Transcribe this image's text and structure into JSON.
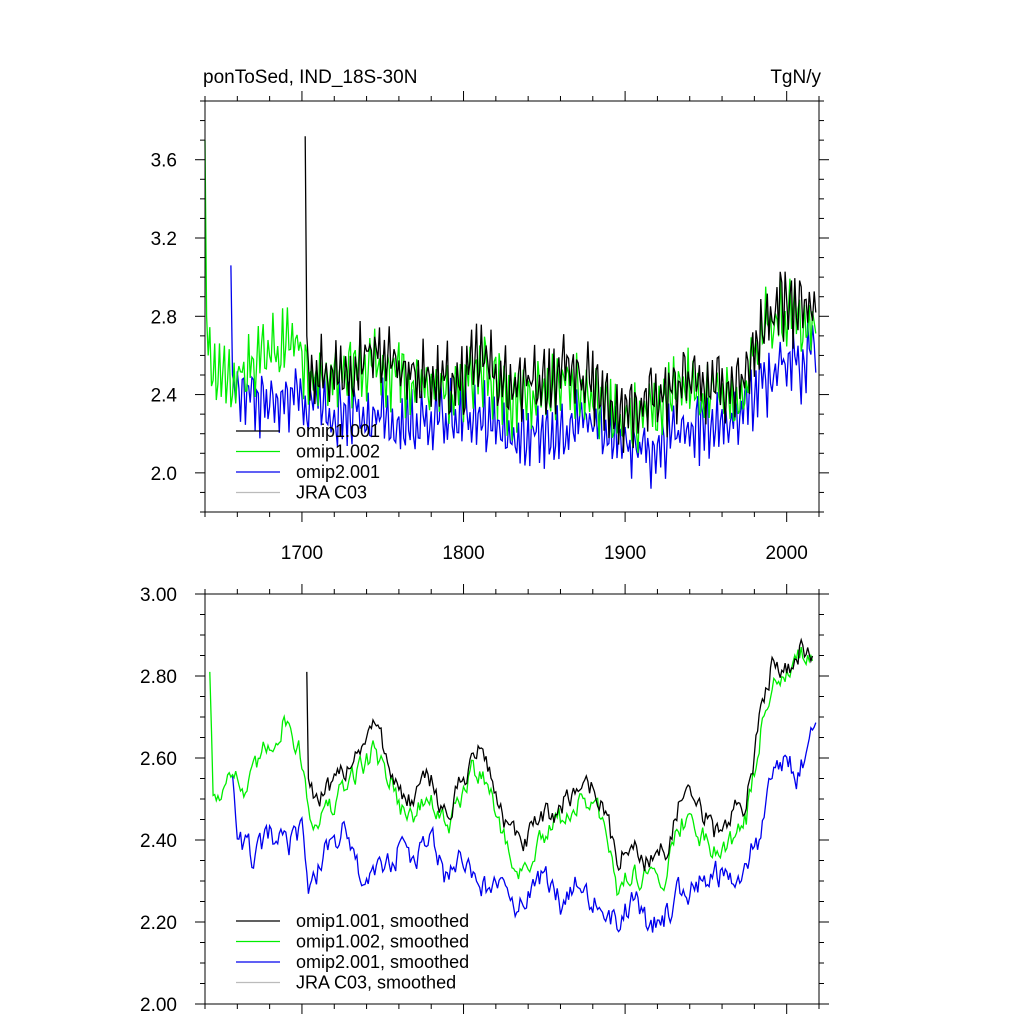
{
  "chart_data": [
    {
      "type": "line",
      "title_left": "ponToSed, IND_18S-30N",
      "title_right": "TgN/y",
      "xlim": [
        1640,
        2020
      ],
      "ylim": [
        1.8,
        3.9
      ],
      "x_ticks": [
        1700,
        1800,
        1900,
        2000
      ],
      "x_tick_labels": [
        "1700",
        "1800",
        "1900",
        "2000"
      ],
      "y_ticks": [
        2.0,
        2.4,
        2.8,
        3.2,
        3.6
      ],
      "y_tick_labels": [
        "2.0",
        "2.4",
        "2.8",
        "3.2",
        "3.6"
      ],
      "legend_position": "bottom-left",
      "series": [
        {
          "name": "omip1.001",
          "color": "#000000",
          "x_start": 1702,
          "x_end": 2018,
          "anchors": [
            [
              1702,
              3.72
            ],
            [
              1703,
              2.7
            ],
            [
              1705,
              2.55
            ],
            [
              1720,
              2.5
            ],
            [
              1740,
              2.62
            ],
            [
              1760,
              2.55
            ],
            [
              1780,
              2.48
            ],
            [
              1800,
              2.45
            ],
            [
              1810,
              2.6
            ],
            [
              1830,
              2.42
            ],
            [
              1850,
              2.48
            ],
            [
              1870,
              2.52
            ],
            [
              1880,
              2.45
            ],
            [
              1895,
              2.28
            ],
            [
              1910,
              2.35
            ],
            [
              1925,
              2.38
            ],
            [
              1935,
              2.5
            ],
            [
              1950,
              2.42
            ],
            [
              1965,
              2.45
            ],
            [
              1975,
              2.5
            ],
            [
              1985,
              2.75
            ],
            [
              1995,
              2.85
            ],
            [
              2005,
              2.85
            ],
            [
              2018,
              2.8
            ]
          ],
          "amplitude": 0.17
        },
        {
          "name": "omip1.002",
          "color": "#00ee00",
          "x_start": 1640,
          "x_end": 2018,
          "anchors": [
            [
              1640,
              3.7
            ],
            [
              1641,
              2.8
            ],
            [
              1643,
              2.55
            ],
            [
              1650,
              2.45
            ],
            [
              1660,
              2.5
            ],
            [
              1680,
              2.6
            ],
            [
              1695,
              2.7
            ],
            [
              1702,
              2.55
            ],
            [
              1720,
              2.45
            ],
            [
              1740,
              2.58
            ],
            [
              1760,
              2.5
            ],
            [
              1780,
              2.42
            ],
            [
              1800,
              2.42
            ],
            [
              1810,
              2.55
            ],
            [
              1830,
              2.38
            ],
            [
              1850,
              2.42
            ],
            [
              1870,
              2.48
            ],
            [
              1880,
              2.42
            ],
            [
              1895,
              2.25
            ],
            [
              1910,
              2.3
            ],
            [
              1925,
              2.35
            ],
            [
              1935,
              2.45
            ],
            [
              1950,
              2.38
            ],
            [
              1965,
              2.4
            ],
            [
              1975,
              2.45
            ],
            [
              1985,
              2.72
            ],
            [
              1995,
              2.8
            ],
            [
              2005,
              2.8
            ],
            [
              2018,
              2.75
            ]
          ],
          "amplitude": 0.17
        },
        {
          "name": "omip2.001",
          "color": "#0000ee",
          "x_start": 1656,
          "x_end": 2018,
          "anchors": [
            [
              1656,
              3.06
            ],
            [
              1657,
              2.5
            ],
            [
              1660,
              2.4
            ],
            [
              1680,
              2.35
            ],
            [
              1700,
              2.38
            ],
            [
              1720,
              2.3
            ],
            [
              1740,
              2.32
            ],
            [
              1760,
              2.25
            ],
            [
              1780,
              2.25
            ],
            [
              1800,
              2.3
            ],
            [
              1820,
              2.25
            ],
            [
              1840,
              2.18
            ],
            [
              1860,
              2.22
            ],
            [
              1880,
              2.25
            ],
            [
              1900,
              2.18
            ],
            [
              1915,
              2.1
            ],
            [
              1930,
              2.2
            ],
            [
              1950,
              2.25
            ],
            [
              1970,
              2.3
            ],
            [
              1985,
              2.45
            ],
            [
              2000,
              2.6
            ],
            [
              2010,
              2.55
            ],
            [
              2018,
              2.7
            ]
          ],
          "amplitude": 0.16
        },
        {
          "name": "JRA C03",
          "color": "#bbbbbb",
          "x_start": null,
          "x_end": null,
          "anchors": [],
          "amplitude": 0
        }
      ]
    },
    {
      "type": "line",
      "xlim": [
        1640,
        2020
      ],
      "ylim": [
        2.0,
        3.0
      ],
      "y_ticks": [
        2.0,
        2.2,
        2.4,
        2.6,
        2.8,
        3.0
      ],
      "y_tick_labels": [
        "2.00",
        "2.20",
        "2.40",
        "2.60",
        "2.80",
        "3.00"
      ],
      "legend_position": "bottom-left",
      "series": [
        {
          "name": "omip1.001, smoothed",
          "color": "#000000",
          "x_start": 1703,
          "x_end": 2016,
          "anchors": [
            [
              1703,
              2.81
            ],
            [
              1704,
              2.55
            ],
            [
              1710,
              2.5
            ],
            [
              1720,
              2.52
            ],
            [
              1730,
              2.6
            ],
            [
              1745,
              2.68
            ],
            [
              1755,
              2.58
            ],
            [
              1765,
              2.48
            ],
            [
              1780,
              2.55
            ],
            [
              1790,
              2.45
            ],
            [
              1805,
              2.6
            ],
            [
              1812,
              2.62
            ],
            [
              1825,
              2.45
            ],
            [
              1835,
              2.38
            ],
            [
              1850,
              2.45
            ],
            [
              1860,
              2.48
            ],
            [
              1875,
              2.55
            ],
            [
              1885,
              2.5
            ],
            [
              1895,
              2.35
            ],
            [
              1905,
              2.38
            ],
            [
              1915,
              2.35
            ],
            [
              1925,
              2.38
            ],
            [
              1935,
              2.5
            ],
            [
              1945,
              2.48
            ],
            [
              1955,
              2.42
            ],
            [
              1965,
              2.45
            ],
            [
              1975,
              2.5
            ],
            [
              1985,
              2.72
            ],
            [
              1992,
              2.85
            ],
            [
              2000,
              2.82
            ],
            [
              2010,
              2.88
            ],
            [
              2016,
              2.85
            ]
          ],
          "amplitude": 0.03
        },
        {
          "name": "omip1.002, smoothed",
          "color": "#00ee00",
          "x_start": 1643,
          "x_end": 2016,
          "anchors": [
            [
              1643,
              2.81
            ],
            [
              1645,
              2.52
            ],
            [
              1650,
              2.5
            ],
            [
              1655,
              2.6
            ],
            [
              1665,
              2.5
            ],
            [
              1675,
              2.6
            ],
            [
              1690,
              2.7
            ],
            [
              1700,
              2.6
            ],
            [
              1705,
              2.45
            ],
            [
              1720,
              2.48
            ],
            [
              1730,
              2.55
            ],
            [
              1745,
              2.62
            ],
            [
              1755,
              2.55
            ],
            [
              1765,
              2.45
            ],
            [
              1780,
              2.5
            ],
            [
              1790,
              2.42
            ],
            [
              1805,
              2.56
            ],
            [
              1812,
              2.58
            ],
            [
              1825,
              2.4
            ],
            [
              1835,
              2.32
            ],
            [
              1850,
              2.4
            ],
            [
              1860,
              2.45
            ],
            [
              1875,
              2.5
            ],
            [
              1885,
              2.45
            ],
            [
              1895,
              2.28
            ],
            [
              1905,
              2.33
            ],
            [
              1915,
              2.3
            ],
            [
              1925,
              2.33
            ],
            [
              1935,
              2.45
            ],
            [
              1945,
              2.43
            ],
            [
              1955,
              2.38
            ],
            [
              1965,
              2.4
            ],
            [
              1975,
              2.45
            ],
            [
              1985,
              2.68
            ],
            [
              1992,
              2.82
            ],
            [
              2000,
              2.8
            ],
            [
              2010,
              2.85
            ],
            [
              2016,
              2.82
            ]
          ],
          "amplitude": 0.03
        },
        {
          "name": "omip2.001, smoothed",
          "color": "#0000ee",
          "x_start": 1657,
          "x_end": 2018,
          "anchors": [
            [
              1657,
              2.56
            ],
            [
              1660,
              2.42
            ],
            [
              1670,
              2.35
            ],
            [
              1680,
              2.4
            ],
            [
              1690,
              2.38
            ],
            [
              1700,
              2.42
            ],
            [
              1705,
              2.28
            ],
            [
              1715,
              2.38
            ],
            [
              1725,
              2.42
            ],
            [
              1735,
              2.32
            ],
            [
              1745,
              2.3
            ],
            [
              1760,
              2.38
            ],
            [
              1770,
              2.35
            ],
            [
              1780,
              2.4
            ],
            [
              1790,
              2.3
            ],
            [
              1800,
              2.35
            ],
            [
              1810,
              2.28
            ],
            [
              1820,
              2.3
            ],
            [
              1830,
              2.22
            ],
            [
              1840,
              2.28
            ],
            [
              1850,
              2.3
            ],
            [
              1860,
              2.25
            ],
            [
              1870,
              2.32
            ],
            [
              1880,
              2.25
            ],
            [
              1895,
              2.2
            ],
            [
              1905,
              2.25
            ],
            [
              1915,
              2.18
            ],
            [
              1925,
              2.22
            ],
            [
              1935,
              2.28
            ],
            [
              1945,
              2.3
            ],
            [
              1955,
              2.32
            ],
            [
              1965,
              2.3
            ],
            [
              1975,
              2.33
            ],
            [
              1985,
              2.42
            ],
            [
              1992,
              2.55
            ],
            [
              2000,
              2.62
            ],
            [
              2008,
              2.55
            ],
            [
              2018,
              2.73
            ]
          ],
          "amplitude": 0.035
        },
        {
          "name": "JRA C03, smoothed",
          "color": "#bbbbbb",
          "x_start": null,
          "x_end": null,
          "anchors": [],
          "amplitude": 0
        }
      ]
    }
  ]
}
